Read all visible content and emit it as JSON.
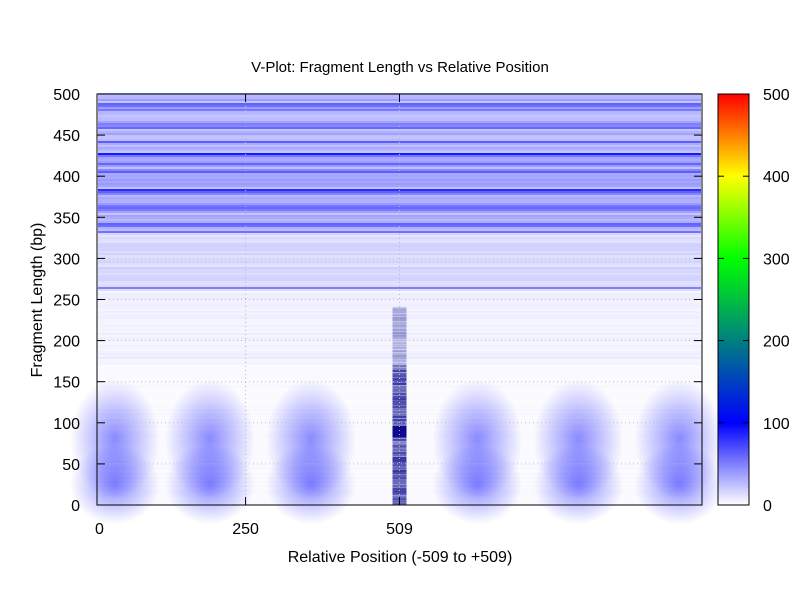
{
  "chart_data": {
    "type": "heatmap",
    "title": "V-Plot: Fragment Length vs Relative Position",
    "xlabel": "Relative Position (-509 to +509)",
    "ylabel": "Fragment Length (bp)",
    "xlim": [
      0,
      1018
    ],
    "ylim": [
      0,
      500
    ],
    "x_ticks": [
      {
        "value": 0,
        "label": "0"
      },
      {
        "value": 250,
        "label": "250"
      },
      {
        "value": 509,
        "label": "509"
      }
    ],
    "y_ticks": [
      0,
      50,
      100,
      150,
      200,
      250,
      300,
      350,
      400,
      450,
      500
    ],
    "colorbar": {
      "min": 0,
      "max": 500,
      "ticks": [
        0,
        100,
        200,
        300,
        400,
        500
      ],
      "colors": [
        "#ffffff",
        "#0000ff",
        "#008080",
        "#00ff00",
        "#ffff00",
        "#ff0000"
      ]
    },
    "grid": true,
    "nucleosome_centers_x": [
      30,
      190,
      360,
      640,
      810,
      980
    ],
    "density_peak_bands_y": [
      15,
      40,
      75,
      95,
      120,
      140,
      160
    ],
    "center_x": 509
  }
}
